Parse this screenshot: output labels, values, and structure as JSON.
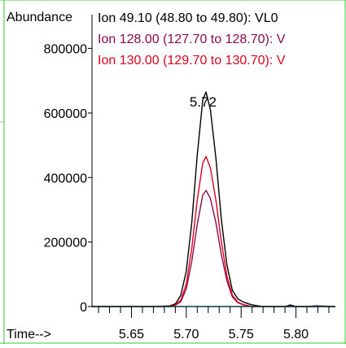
{
  "chart_data": {
    "type": "line",
    "ylabel": "Abundance",
    "xlabel": "Time-->",
    "x_ticks": [
      5.65,
      5.7,
      5.75,
      5.8
    ],
    "x_tick_labels": [
      "5.65",
      "5.70",
      "5.75",
      "5.80"
    ],
    "y_ticks": [
      0,
      200000,
      400000,
      600000,
      800000
    ],
    "y_tick_labels": [
      "0",
      "200000",
      "400000",
      "600000",
      "800000"
    ],
    "xlim": [
      5.614,
      5.836
    ],
    "ylim": [
      0,
      930000
    ],
    "peak_label": {
      "text": "5.72",
      "x": 5.716,
      "y": 665000
    },
    "series": [
      {
        "name": "Ion  49.10 (48.80 to 49.80): VL0",
        "color": "#000000",
        "points": [
          [
            5.614,
            0
          ],
          [
            5.67,
            0
          ],
          [
            5.685,
            2000
          ],
          [
            5.69,
            8000
          ],
          [
            5.695,
            35000
          ],
          [
            5.7,
            110000
          ],
          [
            5.705,
            260000
          ],
          [
            5.71,
            470000
          ],
          [
            5.715,
            640000
          ],
          [
            5.718,
            665000
          ],
          [
            5.722,
            610000
          ],
          [
            5.727,
            460000
          ],
          [
            5.732,
            270000
          ],
          [
            5.737,
            130000
          ],
          [
            5.742,
            50000
          ],
          [
            5.747,
            24000
          ],
          [
            5.752,
            14000
          ],
          [
            5.757,
            8000
          ],
          [
            5.762,
            4000
          ],
          [
            5.77,
            0
          ],
          [
            5.79,
            0
          ],
          [
            5.795,
            5000
          ],
          [
            5.8,
            0
          ],
          [
            5.81,
            0
          ],
          [
            5.818,
            2000
          ],
          [
            5.836,
            0
          ]
        ]
      },
      {
        "name": "Ion 128.00 (127.70 to 128.70): V",
        "color": "#8b0a50",
        "points": [
          [
            5.614,
            0
          ],
          [
            5.685,
            0
          ],
          [
            5.69,
            4000
          ],
          [
            5.695,
            15000
          ],
          [
            5.7,
            55000
          ],
          [
            5.705,
            140000
          ],
          [
            5.71,
            255000
          ],
          [
            5.715,
            345000
          ],
          [
            5.718,
            360000
          ],
          [
            5.722,
            335000
          ],
          [
            5.727,
            260000
          ],
          [
            5.732,
            160000
          ],
          [
            5.737,
            80000
          ],
          [
            5.742,
            30000
          ],
          [
            5.747,
            12000
          ],
          [
            5.752,
            5000
          ],
          [
            5.76,
            0
          ],
          [
            5.836,
            0
          ]
        ]
      },
      {
        "name": "Ion 130.00 (129.70 to 130.70): V",
        "color": "#e3001b",
        "points": [
          [
            5.614,
            0
          ],
          [
            5.685,
            0
          ],
          [
            5.69,
            5000
          ],
          [
            5.695,
            20000
          ],
          [
            5.7,
            70000
          ],
          [
            5.705,
            180000
          ],
          [
            5.71,
            330000
          ],
          [
            5.715,
            445000
          ],
          [
            5.718,
            465000
          ],
          [
            5.722,
            430000
          ],
          [
            5.727,
            330000
          ],
          [
            5.732,
            200000
          ],
          [
            5.737,
            95000
          ],
          [
            5.742,
            35000
          ],
          [
            5.747,
            14000
          ],
          [
            5.752,
            6000
          ],
          [
            5.76,
            0
          ],
          [
            5.836,
            0
          ]
        ]
      },
      {
        "name": "",
        "color": "#00bcd4",
        "points": [
          [
            5.614,
            0
          ],
          [
            5.836,
            0
          ]
        ]
      }
    ]
  }
}
